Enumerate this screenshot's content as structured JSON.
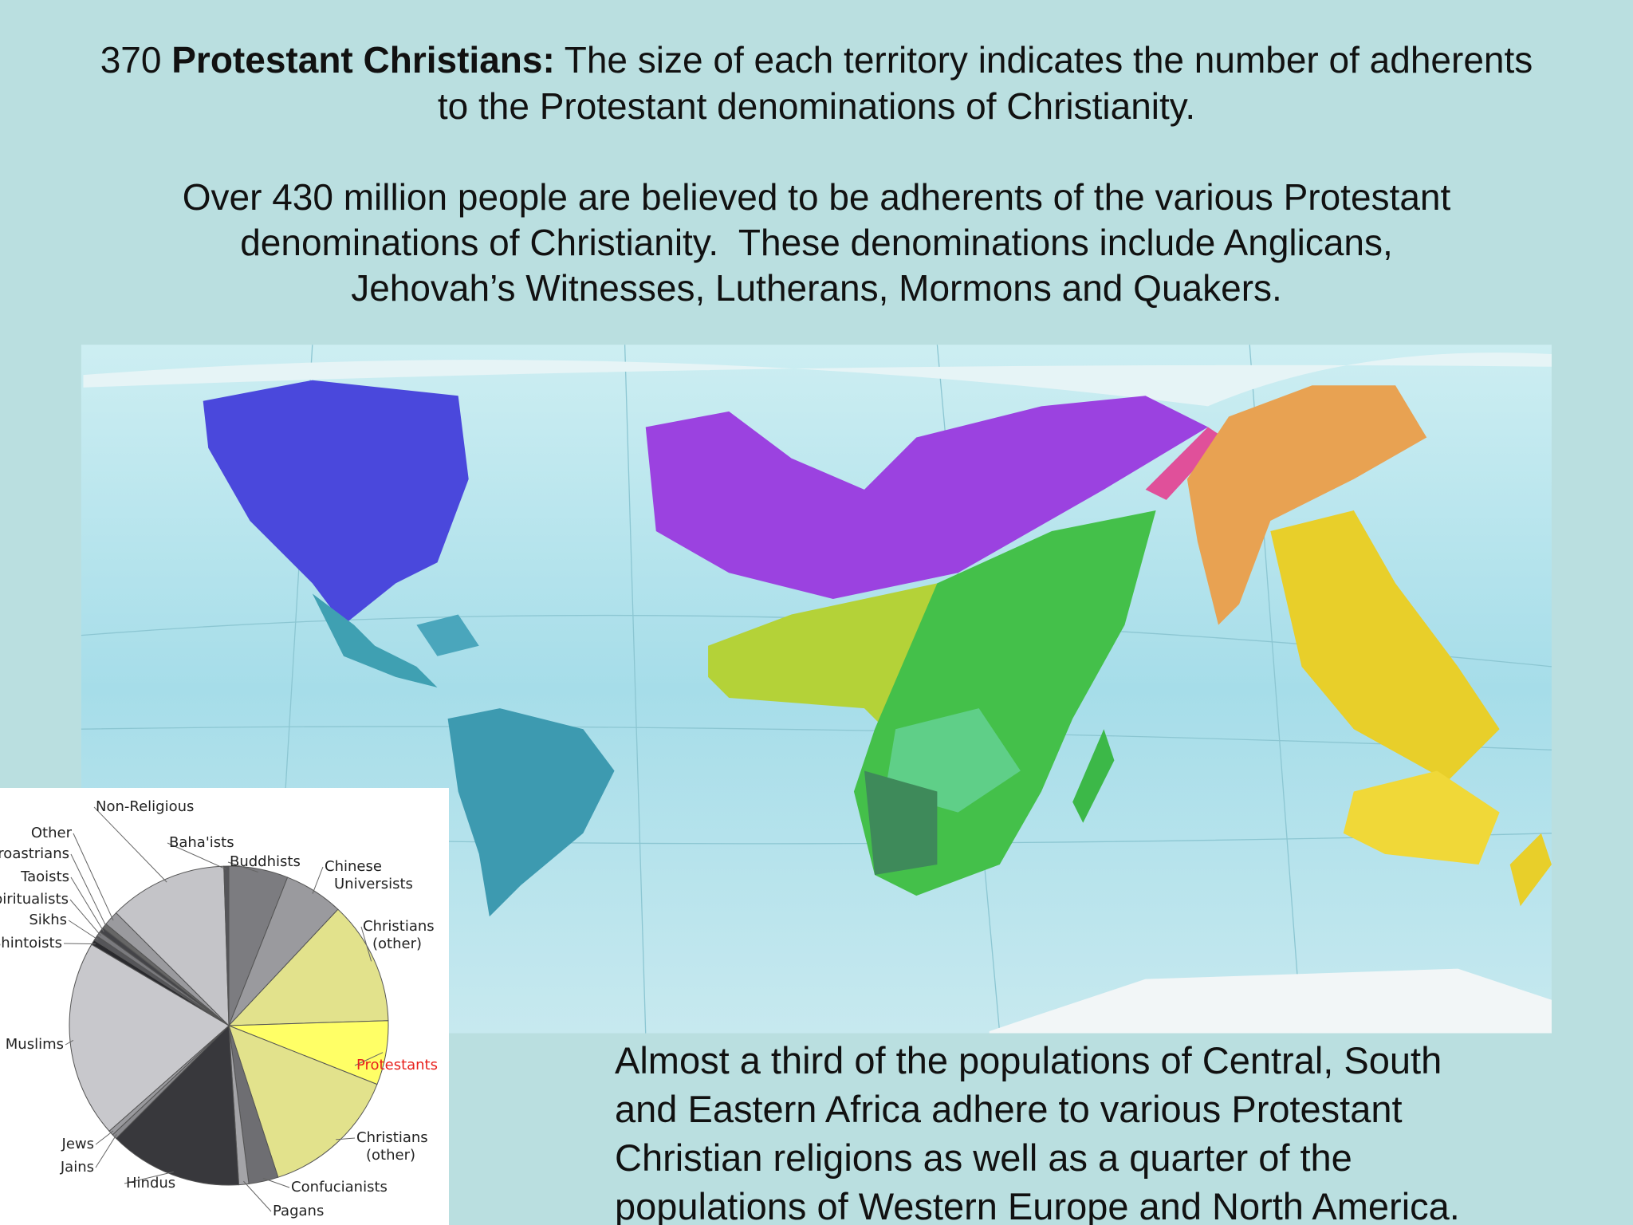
{
  "header": {
    "number": "370",
    "heading": "Protestant Christians:",
    "text": "The size of each territory indicates the number of adherents to the Protestant denominations of Christianity."
  },
  "intro": [
    "Over 430 million people are believed to be adherents of the various Protestant",
    "denominations of Christianity.  These denominations include Anglicans,",
    "Jehovah’s Witnesses, Lutherans, Mormons and Quakers."
  ],
  "caption": [
    "Almost a third of the populations of Central, South",
    "and Eastern Africa adhere to various Protestant",
    "Christian religions as well as a quarter of the",
    "populations of Western Europe and North America."
  ],
  "chart_data": {
    "type": "pie",
    "categories": [
      "Buddhists",
      "Chinese Universists",
      "Christians (other)",
      "Protestants",
      "Christians (other)",
      "Confucianists",
      "Pagans",
      "Hindus",
      "Jains",
      "Jews",
      "Muslims",
      "Shintoists",
      "Sikhs",
      "Spiritualists",
      "Taoists",
      "Zoroastrians",
      "Other",
      "Non-Religious",
      "Baha'ists"
    ],
    "values": [
      6,
      6,
      12.5,
      6.5,
      14,
      3,
      1,
      13.5,
      0.5,
      0.5,
      20,
      0.5,
      0.5,
      0.5,
      0.5,
      0.5,
      1.5,
      12,
      0.5
    ],
    "colors": [
      "#7c7c80",
      "#9a9a9e",
      "#e2e28c",
      "#ffff66",
      "#e2e28c",
      "#6e6e72",
      "#a4a4a8",
      "#38383c",
      "#8a8a8e",
      "#9a9a9e",
      "#c8c8cc",
      "#2a2a2e",
      "#555559",
      "#7a7a7e",
      "#444448",
      "#666",
      "#9a9a9e",
      "#c4c4c8",
      "#555559"
    ],
    "label_colors": [
      "#222",
      "#222",
      "#222",
      "#e8201c",
      "#222",
      "#222",
      "#222",
      "#222",
      "#222",
      "#222",
      "#222",
      "#222",
      "#222",
      "#222",
      "#222",
      "#222",
      "#222",
      "#222",
      "#222"
    ]
  }
}
